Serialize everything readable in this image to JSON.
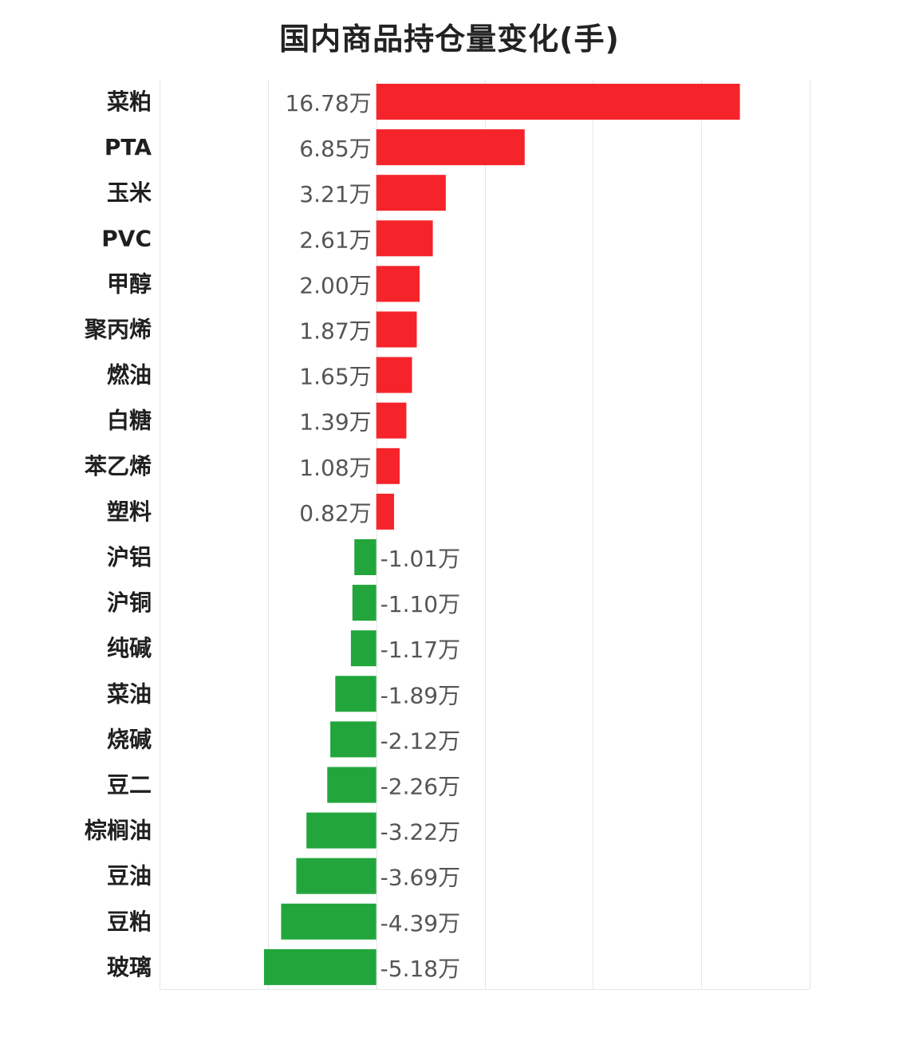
{
  "chart_data": {
    "type": "bar",
    "orientation": "horizontal",
    "title": "国内商品持仓量变化(手)",
    "unit_suffix": "万",
    "categories": [
      "菜粕",
      "PTA",
      "玉米",
      "PVC",
      "甲醇",
      "聚丙烯",
      "燃油",
      "白糖",
      "苯乙烯",
      "塑料",
      "沪铝",
      "沪铜",
      "纯碱",
      "菜油",
      "烧碱",
      "豆二",
      "棕榈油",
      "豆油",
      "豆粕",
      "玻璃"
    ],
    "values": [
      16.78,
      6.85,
      3.21,
      2.61,
      2.0,
      1.87,
      1.65,
      1.39,
      1.08,
      0.82,
      -1.01,
      -1.1,
      -1.17,
      -1.89,
      -2.12,
      -2.26,
      -3.22,
      -3.69,
      -4.39,
      -5.18
    ],
    "value_labels": [
      "16.78万",
      "6.85万",
      "3.21万",
      "2.61万",
      "2.00万",
      "1.87万",
      "1.65万",
      "1.39万",
      "1.08万",
      "0.82万",
      "-1.01万",
      "-1.10万",
      "-1.17万",
      "-1.89万",
      "-2.12万",
      "-2.26万",
      "-3.22万",
      "-3.69万",
      "-4.39万",
      "-5.18万"
    ],
    "xlim": [
      -10,
      20
    ],
    "grid": true,
    "legend": "none",
    "colors": {
      "positive": "#f5242a",
      "negative": "#22a63c"
    }
  }
}
